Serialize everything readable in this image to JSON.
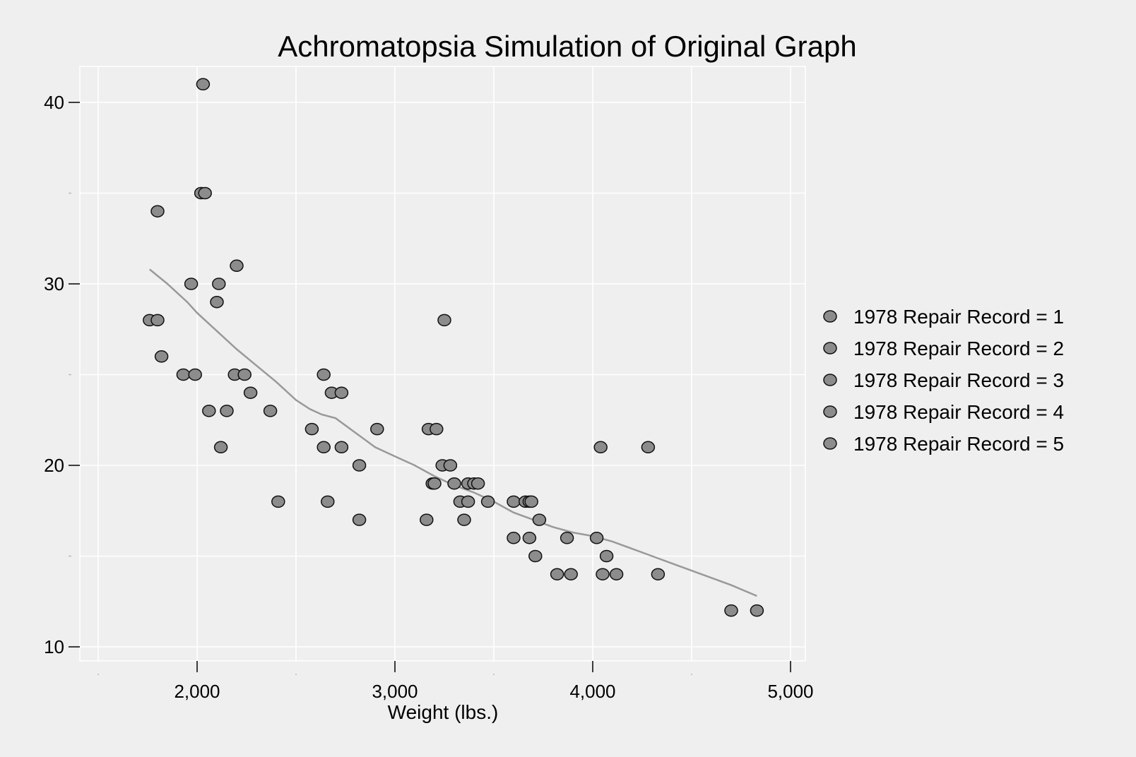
{
  "chart_data": {
    "type": "scatter",
    "title": "Achromatopsia Simulation of Original Graph",
    "xlabel": "Weight (lbs.)",
    "ylabel": "",
    "xlim": [
      1500,
      5100
    ],
    "ylim": [
      10,
      42
    ],
    "x_ticks": [
      2000,
      3000,
      4000,
      5000
    ],
    "x_tick_labels": [
      "2,000",
      "3,000",
      "4,000",
      "5,000"
    ],
    "x_minor_ticks": [
      1500,
      2500,
      3500,
      4500
    ],
    "y_ticks": [
      10,
      20,
      30,
      40
    ],
    "y_tick_labels": [
      "10",
      "20",
      "30",
      "40"
    ],
    "y_minor_ticks": [
      15,
      25,
      35
    ],
    "grid": true,
    "legend_position": "right",
    "marker_fill": "#8c8c8c",
    "marker_stroke": "#111111",
    "line_color": "#999999",
    "gridline_color": "#ffffff",
    "legend": [
      "1978 Repair Record = 1",
      "1978 Repair Record = 2",
      "1978 Repair Record = 3",
      "1978 Repair Record = 4",
      "1978 Repair Record = 5"
    ],
    "points": [
      [
        2030,
        41
      ],
      [
        2020,
        35
      ],
      [
        2040,
        35
      ],
      [
        1800,
        34
      ],
      [
        1970,
        30
      ],
      [
        2110,
        30
      ],
      [
        2200,
        31
      ],
      [
        2100,
        29
      ],
      [
        1760,
        28
      ],
      [
        1800,
        28
      ],
      [
        3250,
        28
      ],
      [
        1820,
        26
      ],
      [
        1930,
        25
      ],
      [
        1990,
        25
      ],
      [
        2190,
        25
      ],
      [
        2240,
        25
      ],
      [
        2640,
        25
      ],
      [
        2270,
        24
      ],
      [
        2680,
        24
      ],
      [
        2730,
        24
      ],
      [
        2060,
        23
      ],
      [
        2150,
        23
      ],
      [
        2370,
        23
      ],
      [
        2580,
        22
      ],
      [
        2910,
        22
      ],
      [
        3170,
        22
      ],
      [
        3210,
        22
      ],
      [
        2120,
        21
      ],
      [
        2640,
        21
      ],
      [
        2730,
        21
      ],
      [
        4040,
        21
      ],
      [
        4280,
        21
      ],
      [
        2820,
        20
      ],
      [
        3240,
        20
      ],
      [
        3280,
        20
      ],
      [
        3190,
        19
      ],
      [
        3200,
        19
      ],
      [
        3300,
        19
      ],
      [
        3370,
        19
      ],
      [
        3400,
        19
      ],
      [
        3420,
        19
      ],
      [
        2410,
        18
      ],
      [
        2660,
        18
      ],
      [
        3330,
        18
      ],
      [
        3370,
        18
      ],
      [
        3470,
        18
      ],
      [
        3600,
        18
      ],
      [
        3660,
        18
      ],
      [
        3680,
        18
      ],
      [
        3690,
        18
      ],
      [
        2820,
        17
      ],
      [
        3160,
        17
      ],
      [
        3350,
        17
      ],
      [
        3730,
        17
      ],
      [
        3600,
        16
      ],
      [
        3680,
        16
      ],
      [
        3870,
        16
      ],
      [
        4020,
        16
      ],
      [
        3710,
        15
      ],
      [
        4070,
        15
      ],
      [
        3820,
        14
      ],
      [
        3890,
        14
      ],
      [
        4050,
        14
      ],
      [
        4120,
        14
      ],
      [
        4330,
        14
      ],
      [
        4700,
        12
      ],
      [
        4830,
        12
      ]
    ],
    "fit_line": [
      [
        1760,
        30.8
      ],
      [
        1850,
        30.0
      ],
      [
        1950,
        29.0
      ],
      [
        2000,
        28.4
      ],
      [
        2100,
        27.4
      ],
      [
        2200,
        26.4
      ],
      [
        2300,
        25.5
      ],
      [
        2400,
        24.6
      ],
      [
        2500,
        23.6
      ],
      [
        2570,
        23.1
      ],
      [
        2630,
        22.8
      ],
      [
        2700,
        22.6
      ],
      [
        2800,
        21.8
      ],
      [
        2900,
        21.0
      ],
      [
        3000,
        20.5
      ],
      [
        3100,
        20.0
      ],
      [
        3200,
        19.4
      ],
      [
        3300,
        18.9
      ],
      [
        3400,
        18.5
      ],
      [
        3500,
        18.0
      ],
      [
        3600,
        17.4
      ],
      [
        3700,
        17.0
      ],
      [
        3800,
        16.6
      ],
      [
        3900,
        16.3
      ],
      [
        4000,
        16.1
      ],
      [
        4100,
        15.8
      ],
      [
        4200,
        15.4
      ],
      [
        4300,
        15.0
      ],
      [
        4400,
        14.6
      ],
      [
        4500,
        14.2
      ],
      [
        4600,
        13.8
      ],
      [
        4700,
        13.4
      ],
      [
        4830,
        12.8
      ]
    ]
  }
}
